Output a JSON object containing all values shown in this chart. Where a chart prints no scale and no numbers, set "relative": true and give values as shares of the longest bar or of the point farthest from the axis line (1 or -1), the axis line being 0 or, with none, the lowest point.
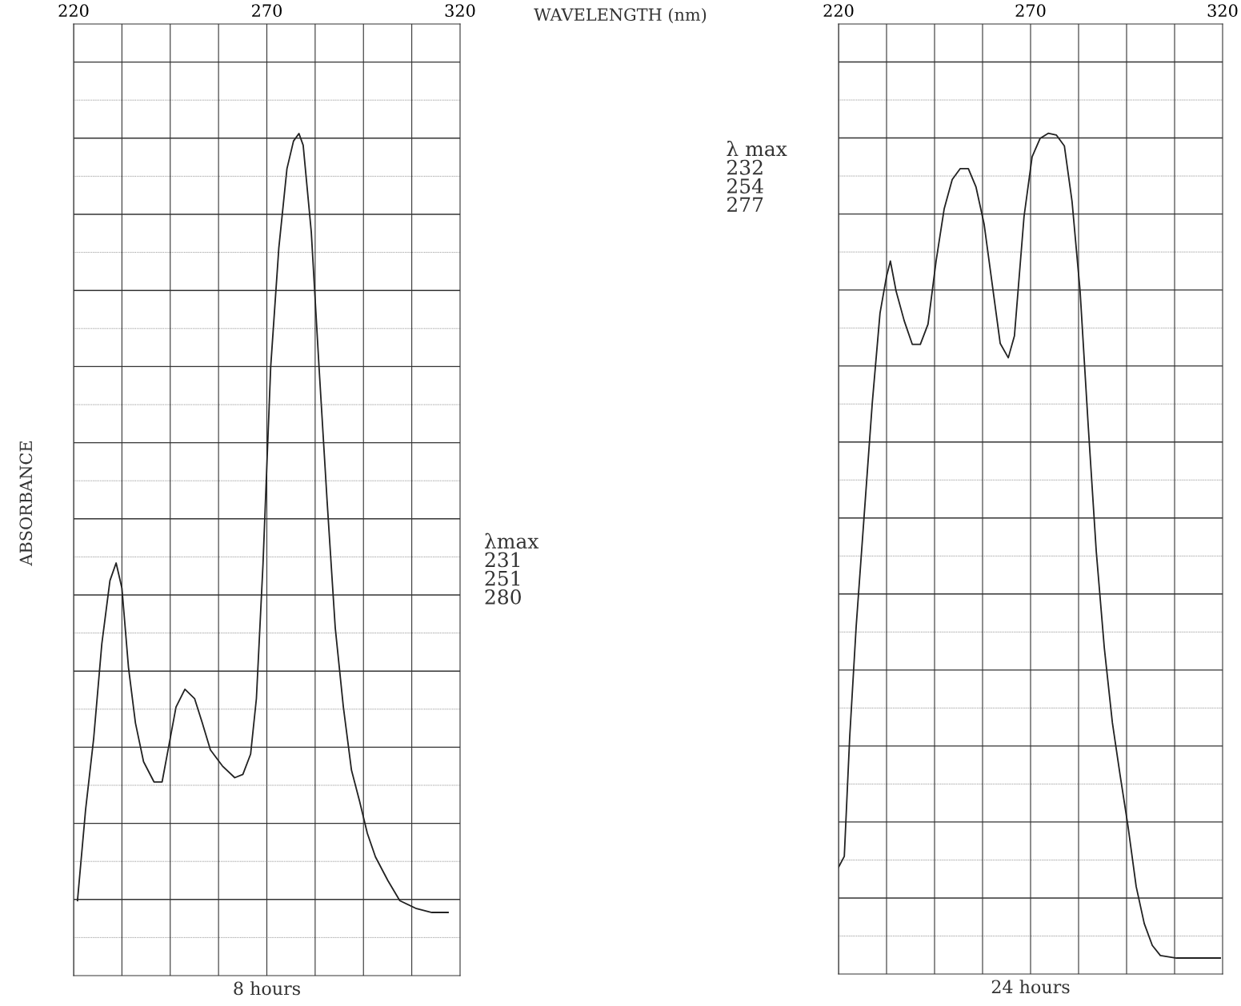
{
  "chart_data": [
    {
      "type": "line",
      "relative": true,
      "xlabel": "WAVELENGTH (nm)",
      "ylabel": "ABSORBANCE",
      "subtitle": "8 hours",
      "xlim": [
        220,
        320
      ],
      "xticks": [
        220,
        270,
        320
      ],
      "grid": true,
      "tick_labels": "x",
      "line_style": "solid",
      "annotations": [
        "λmax\n231\n251\n280"
      ],
      "series": [
        {
          "color": "#222222",
          "x": [
            221.0,
            223.1,
            225.2,
            227.3,
            229.4,
            231.0,
            232.5,
            234.2,
            236.0,
            238.1,
            240.8,
            242.9,
            244.6,
            246.5,
            248.8,
            251.3,
            253.3,
            255.4,
            258.5,
            261.7,
            263.8,
            265.8,
            267.3,
            269.0,
            271.0,
            273.1,
            275.2,
            276.9,
            278.3,
            279.4,
            281.5,
            283.5,
            285.6,
            287.7,
            289.8,
            291.9,
            294.0,
            296.0,
            298.1,
            301.3,
            304.4,
            308.5,
            312.7,
            316.9
          ],
          "values": [
            0.089,
            0.197,
            0.282,
            0.394,
            0.469,
            0.49,
            0.46,
            0.366,
            0.3,
            0.254,
            0.23,
            0.23,
            0.272,
            0.319,
            0.34,
            0.329,
            0.3,
            0.268,
            0.249,
            0.235,
            0.239,
            0.263,
            0.329,
            0.488,
            0.723,
            0.864,
            0.958,
            0.991,
            1,
            0.986,
            0.883,
            0.723,
            0.563,
            0.413,
            0.319,
            0.244,
            0.207,
            0.169,
            0.141,
            0.113,
            0.089,
            0.08,
            0.075,
            0.075
          ]
        }
      ]
    },
    {
      "type": "line",
      "relative": true,
      "subtitle": "24 hours",
      "xlim": [
        220,
        320
      ],
      "xticks": [
        220,
        270,
        320
      ],
      "grid": true,
      "tick_labels": "x",
      "line_style": "solid",
      "annotations": [
        "λ max\n232\n254\n277"
      ],
      "series": [
        {
          "color": "#222222",
          "x": [
            220.0,
            221.5,
            222.9,
            224.6,
            226.7,
            228.8,
            230.8,
            232.5,
            233.5,
            235.0,
            237.1,
            239.2,
            241.3,
            243.3,
            245.4,
            247.5,
            249.6,
            251.7,
            253.8,
            255.8,
            257.9,
            260.0,
            262.1,
            264.2,
            265.8,
            268.3,
            270.4,
            272.5,
            274.6,
            276.7,
            278.8,
            280.8,
            282.9,
            285.0,
            287.1,
            289.2,
            291.3,
            293.3,
            295.4,
            297.5,
            299.6,
            301.7,
            303.8,
            308.0,
            314.2,
            319.4
          ],
          "values": [
            0.127,
            0.14,
            0.281,
            0.414,
            0.547,
            0.68,
            0.786,
            0.83,
            0.848,
            0.812,
            0.777,
            0.749,
            0.749,
            0.773,
            0.848,
            0.91,
            0.945,
            0.958,
            0.958,
            0.936,
            0.892,
            0.821,
            0.75,
            0.733,
            0.759,
            0.901,
            0.972,
            0.994,
            1,
            0.998,
            0.985,
            0.919,
            0.812,
            0.653,
            0.503,
            0.388,
            0.299,
            0.237,
            0.175,
            0.104,
            0.06,
            0.034,
            0.022,
            0.019,
            0.019,
            0.019
          ]
        }
      ]
    }
  ]
}
